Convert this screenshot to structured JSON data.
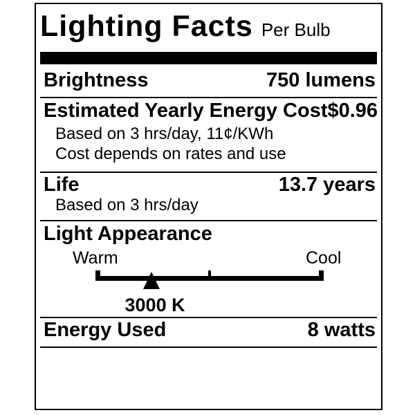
{
  "label": {
    "title": "Lighting Facts",
    "subtitle": "Per Bulb",
    "brightness": {
      "label": "Brightness",
      "value": "750 lumens"
    },
    "energy_cost": {
      "label": "Estimated Yearly Energy Cost",
      "value": "$0.96",
      "note1": "Based on 3 hrs/day, 11¢/KWh",
      "note2": "Cost depends on rates and use"
    },
    "life": {
      "label": "Life",
      "value": "13.7 years",
      "note": "Based on 3 hrs/day"
    },
    "light_appearance": {
      "label": "Light Appearance",
      "warm_label": "Warm",
      "cool_label": "Cool",
      "kelvin": "3000 K",
      "marker_percent": 24.5
    },
    "energy_used": {
      "label": "Energy Used",
      "value": "8 watts"
    },
    "colors": {
      "ink": "#000000",
      "paper": "#ffffff"
    }
  }
}
